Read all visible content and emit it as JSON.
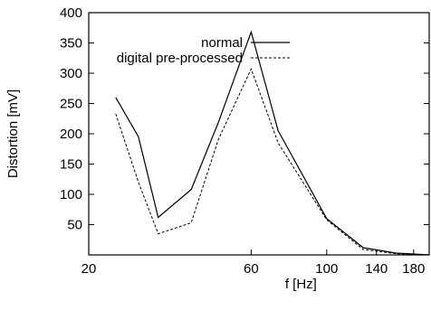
{
  "chart_data": {
    "type": "line",
    "title": "",
    "xlabel": "f [Hz]",
    "ylabel": "Distortion [mV]",
    "xlim": [
      20,
      200
    ],
    "ylim": [
      0,
      400
    ],
    "x_ticks": [
      {
        "value": 20,
        "label": "20"
      },
      {
        "value": 60,
        "label": "60"
      },
      {
        "value": 100,
        "label": "100"
      },
      {
        "value": 140,
        "label": "140"
      },
      {
        "value": 180,
        "label": "180"
      }
    ],
    "y_ticks": [
      {
        "value": 50,
        "label": "50"
      },
      {
        "value": 100,
        "label": "100"
      },
      {
        "value": 150,
        "label": "150"
      },
      {
        "value": 200,
        "label": "200"
      },
      {
        "value": 250,
        "label": "250"
      },
      {
        "value": 300,
        "label": "300"
      },
      {
        "value": 350,
        "label": "350"
      },
      {
        "value": 400,
        "label": "400"
      }
    ],
    "legend_position": "top-right",
    "grid": false,
    "series": [
      {
        "name": "normal",
        "style": "solid",
        "x": [
          24,
          28,
          32,
          40,
          48,
          60,
          72,
          100,
          128,
          160,
          200
        ],
        "y": [
          260,
          195,
          62,
          108,
          218,
          368,
          205,
          60,
          12,
          3,
          0
        ]
      },
      {
        "name": "digital pre-processed",
        "style": "dashed",
        "x": [
          24,
          28,
          32,
          40,
          48,
          60,
          72,
          100,
          128,
          160,
          200
        ],
        "y": [
          233,
          120,
          35,
          53,
          190,
          307,
          185,
          58,
          9,
          2,
          0
        ]
      }
    ]
  }
}
